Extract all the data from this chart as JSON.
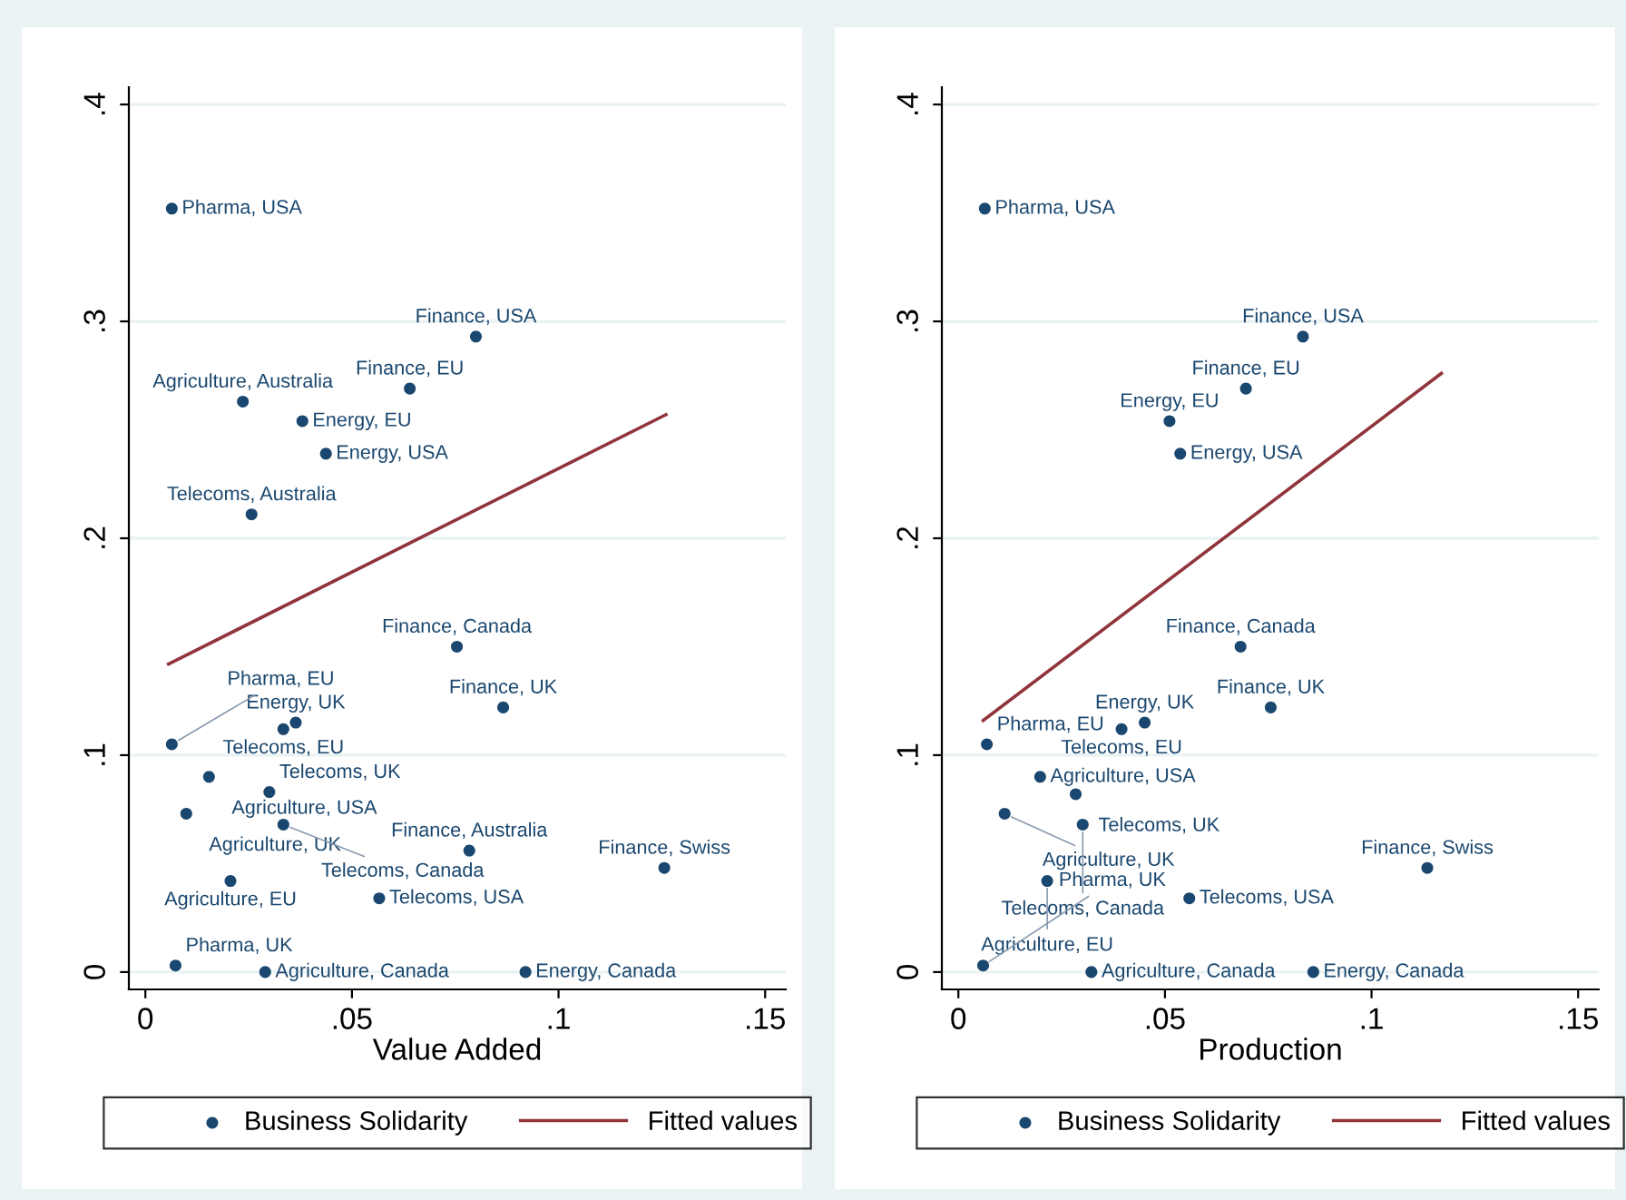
{
  "chart_data": [
    {
      "type": "scatter",
      "xlabel": "Value Added",
      "xlim": [
        -0.004,
        0.155
      ],
      "ylim": [
        -0.008,
        0.408
      ],
      "xticks": [
        0,
        {
          "value": 0.05,
          "label": ".05"
        },
        {
          "value": 0.1,
          "label": ".1"
        },
        {
          "value": 0.15,
          "label": ".15"
        }
      ],
      "yticks": [
        0,
        {
          "value": 0.1,
          "label": ".1"
        },
        {
          "value": 0.2,
          "label": ".2"
        },
        {
          "value": 0.3,
          "label": ".3"
        },
        {
          "value": 0.4,
          "label": ".4"
        }
      ],
      "grid": "y",
      "legend": "bottom",
      "series": [
        {
          "name": "Business Solidarity",
          "marker": "circle",
          "color": "#1a476f",
          "x": [
            0.0064,
            0.08,
            0.064,
            0.0236,
            0.038,
            0.0437,
            0.0257,
            0.0754,
            0.0866,
            0.0334,
            0.0364,
            0.0064,
            0.0154,
            0.03,
            0.0099,
            0.0334,
            0.0784,
            0.1256,
            0.0206,
            0.0566,
            0.0073,
            0.029,
            0.092
          ],
          "values": [
            0.352,
            0.293,
            0.269,
            0.263,
            0.254,
            0.239,
            0.211,
            0.15,
            0.122,
            0.112,
            0.115,
            0.105,
            0.09,
            0.083,
            0.073,
            0.068,
            0.056,
            0.048,
            0.042,
            0.034,
            0.003,
            0,
            0
          ]
        },
        {
          "name": "Fitted values",
          "type": "line",
          "color": "#90353b",
          "x": [
            0.0056,
            0.126
          ],
          "values": [
            0.142,
            0.257
          ]
        }
      ],
      "annotations": [
        {
          "text": "Pharma, USA",
          "x": 0.0064,
          "y": 0.352
        },
        {
          "text": "Finance, USA",
          "x": 0.08,
          "y": 0.293
        },
        {
          "text": "Finance, EU",
          "x": 0.064,
          "y": 0.269
        },
        {
          "text": "Agriculture, Australia",
          "x": 0.0236,
          "y": 0.263
        },
        {
          "text": "Energy, EU",
          "x": 0.038,
          "y": 0.254
        },
        {
          "text": "Energy, USA",
          "x": 0.0437,
          "y": 0.239
        },
        {
          "text": "Telecoms, Australia",
          "x": 0.0257,
          "y": 0.211
        },
        {
          "text": "Finance, Canada",
          "x": 0.0754,
          "y": 0.15
        },
        {
          "text": "Finance, UK",
          "x": 0.0866,
          "y": 0.122
        },
        {
          "text": "Telecoms, EU",
          "x": 0.0334,
          "y": 0.112
        },
        {
          "text": "Energy, UK",
          "x": 0.0364,
          "y": 0.115
        },
        {
          "text": "Pharma, EU",
          "x": 0.0064,
          "y": 0.105
        },
        {
          "text": "Agriculture, USA",
          "x": 0.0154,
          "y": 0.09
        },
        {
          "text": "Telecoms, UK",
          "x": 0.03,
          "y": 0.083
        },
        {
          "text": "Agriculture, UK",
          "x": 0.0099,
          "y": 0.073
        },
        {
          "text": "Telecoms, Canada",
          "x": 0.0334,
          "y": 0.068
        },
        {
          "text": "Finance, Australia",
          "x": 0.0784,
          "y": 0.056
        },
        {
          "text": "Finance, Swiss",
          "x": 0.1256,
          "y": 0.048
        },
        {
          "text": "Agriculture, EU",
          "x": 0.0206,
          "y": 0.042
        },
        {
          "text": "Telecoms, USA",
          "x": 0.0566,
          "y": 0.034
        },
        {
          "text": "Pharma, UK",
          "x": 0.0073,
          "y": 0.003
        },
        {
          "text": "Agriculture, Canada",
          "x": 0.029,
          "y": 0
        },
        {
          "text": "Energy, Canada",
          "x": 0.092,
          "y": 0
        }
      ]
    },
    {
      "type": "scatter",
      "xlabel": "Production",
      "xlim": [
        -0.004,
        0.155
      ],
      "ylim": [
        -0.008,
        0.408
      ],
      "xticks": [
        0,
        {
          "value": 0.05,
          "label": ".05"
        },
        {
          "value": 0.1,
          "label": ".1"
        },
        {
          "value": 0.15,
          "label": ".15"
        }
      ],
      "yticks": [
        0,
        {
          "value": 0.1,
          "label": ".1"
        },
        {
          "value": 0.2,
          "label": ".2"
        },
        {
          "value": 0.3,
          "label": ".3"
        },
        {
          "value": 0.4,
          "label": ".4"
        }
      ],
      "grid": "y",
      "legend": "bottom",
      "series": [
        {
          "name": "Business Solidarity",
          "marker": "circle",
          "color": "#1a476f",
          "x": [
            0.0064,
            0.0834,
            0.0696,
            0.0511,
            0.0537,
            0.0683,
            0.0756,
            0.0395,
            0.0451,
            0.0069,
            0.0198,
            0.0284,
            0.0112,
            0.0301,
            0.1135,
            0.0215,
            0.0559,
            0.006,
            0.0322,
            0.0859
          ],
          "values": [
            0.352,
            0.293,
            0.269,
            0.254,
            0.239,
            0.15,
            0.122,
            0.112,
            0.115,
            0.105,
            0.09,
            0.082,
            0.073,
            0.068,
            0.048,
            0.042,
            0.034,
            0.003,
            0,
            0
          ]
        },
        {
          "name": "Fitted values",
          "type": "line",
          "color": "#90353b",
          "x": [
            0.006,
            0.1169
          ],
          "values": [
            0.116,
            0.276
          ]
        }
      ],
      "annotations": [
        {
          "text": "Pharma, USA",
          "x": 0.0064,
          "y": 0.352
        },
        {
          "text": "Finance, USA",
          "x": 0.0834,
          "y": 0.293
        },
        {
          "text": "Finance, EU",
          "x": 0.0696,
          "y": 0.269
        },
        {
          "text": "Energy, EU",
          "x": 0.0511,
          "y": 0.254
        },
        {
          "text": "Energy, USA",
          "x": 0.0537,
          "y": 0.239
        },
        {
          "text": "Finance, Canada",
          "x": 0.0683,
          "y": 0.15
        },
        {
          "text": "Finance, UK",
          "x": 0.0756,
          "y": 0.122
        },
        {
          "text": "Telecoms, EU",
          "x": 0.0395,
          "y": 0.112
        },
        {
          "text": "Energy, UK",
          "x": 0.0451,
          "y": 0.115
        },
        {
          "text": "Pharma, EU",
          "x": 0.0069,
          "y": 0.105
        },
        {
          "text": "Agriculture, USA",
          "x": 0.0198,
          "y": 0.09
        },
        {
          "text": "Telecoms, UK",
          "x": 0.0284,
          "y": 0.082
        },
        {
          "text": "Agriculture, UK",
          "x": 0.0112,
          "y": 0.073
        },
        {
          "text": "Telecoms, Canada",
          "x": 0.0301,
          "y": 0.068
        },
        {
          "text": "Finance, Swiss",
          "x": 0.1135,
          "y": 0.048
        },
        {
          "text": "Agriculture, EU",
          "x": 0.0215,
          "y": 0.042
        },
        {
          "text": "Telecoms, USA",
          "x": 0.0559,
          "y": 0.034
        },
        {
          "text": "Pharma, UK",
          "x": 0.006,
          "y": 0.003
        },
        {
          "text": "Agriculture, Canada",
          "x": 0.0322,
          "y": 0
        },
        {
          "text": "Energy, Canada",
          "x": 0.0859,
          "y": 0
        }
      ]
    }
  ]
}
